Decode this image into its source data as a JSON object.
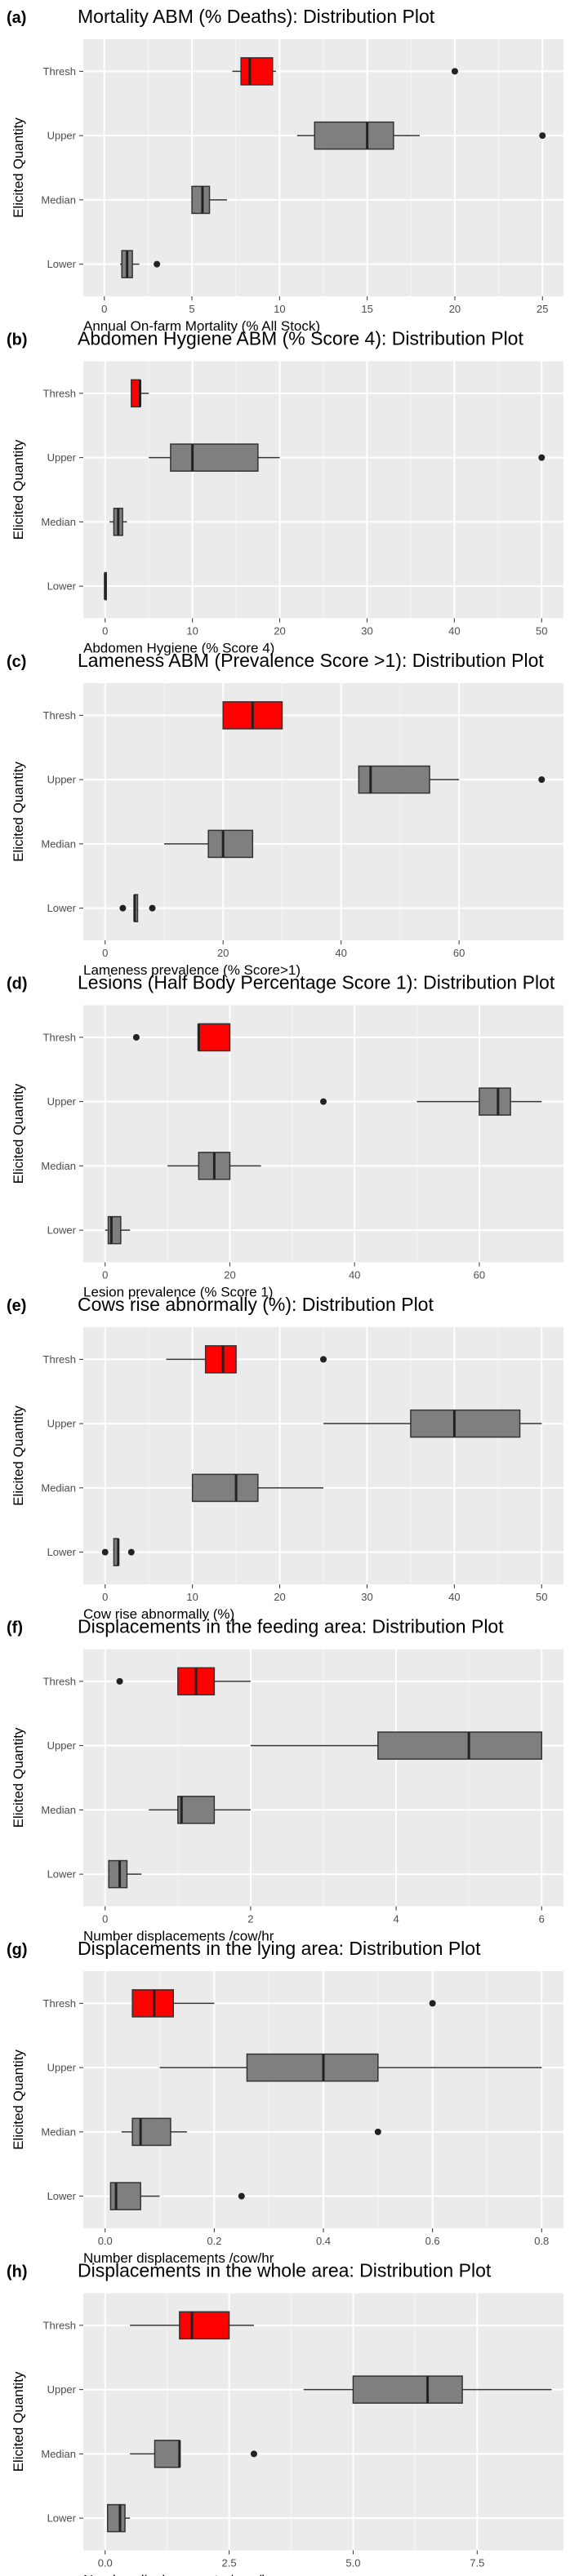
{
  "figure": {
    "y_axis_title": "Elicited Quantity"
  },
  "colors": {
    "panel_bg": "#ebebeb",
    "grid_major": "#ffffff",
    "box_default": "#7f7f7f",
    "box_highlight": "#ff0000",
    "ink": "#333333"
  },
  "chart_data": [
    {
      "type": "boxplot",
      "tag": "(a)",
      "title": "Mortality ABM (% Deaths): Distribution Plot",
      "xlabel": "Annual On-farm Mortality (% All Stock)",
      "xlim": [
        -1.2,
        26.2
      ],
      "xticks": [
        0,
        5,
        10,
        15,
        20,
        25
      ],
      "xtick_labels": [
        "0",
        "5",
        "10",
        "15",
        "20",
        "25"
      ],
      "categories": [
        "Thresh",
        "Upper",
        "Median",
        "Lower"
      ],
      "boxes": [
        {
          "name": "Thresh",
          "highlight": true,
          "whisker_low": 7.3,
          "q1": 7.8,
          "median": 8.3,
          "q3": 9.6,
          "whisker_high": 9.8,
          "outliers": [
            20
          ]
        },
        {
          "name": "Upper",
          "highlight": false,
          "whisker_low": 11,
          "q1": 12,
          "median": 15,
          "q3": 16.5,
          "whisker_high": 18,
          "outliers": [
            25
          ]
        },
        {
          "name": "Median",
          "highlight": false,
          "whisker_low": 5,
          "q1": 5,
          "median": 5.6,
          "q3": 6,
          "whisker_high": 7,
          "outliers": []
        },
        {
          "name": "Lower",
          "highlight": false,
          "whisker_low": 0.9,
          "q1": 1,
          "median": 1.3,
          "q3": 1.6,
          "whisker_high": 2,
          "outliers": [
            3
          ]
        }
      ]
    },
    {
      "type": "boxplot",
      "tag": "(b)",
      "title": "Abdomen Hygiene ABM (% Score 4): Distribution Plot",
      "xlabel": "Abdomen Hygiene (% Score 4)",
      "xlim": [
        -2.5,
        52.5
      ],
      "xticks": [
        0,
        10,
        20,
        30,
        40,
        50
      ],
      "xtick_labels": [
        "0",
        "10",
        "20",
        "30",
        "40",
        "50"
      ],
      "categories": [
        "Thresh",
        "Upper",
        "Median",
        "Lower"
      ],
      "boxes": [
        {
          "name": "Thresh",
          "highlight": true,
          "whisker_low": 3,
          "q1": 3,
          "median": 4,
          "q3": 4,
          "whisker_high": 5,
          "outliers": []
        },
        {
          "name": "Upper",
          "highlight": false,
          "whisker_low": 5,
          "q1": 7.5,
          "median": 10,
          "q3": 17.5,
          "whisker_high": 20,
          "outliers": [
            50
          ]
        },
        {
          "name": "Median",
          "highlight": false,
          "whisker_low": 0.5,
          "q1": 1,
          "median": 1.5,
          "q3": 2,
          "whisker_high": 2.5,
          "outliers": []
        },
        {
          "name": "Lower",
          "highlight": false,
          "whisker_low": 0,
          "q1": 0,
          "median": 0,
          "q3": 0,
          "whisker_high": 0,
          "outliers": []
        }
      ]
    },
    {
      "type": "boxplot",
      "tag": "(c)",
      "title": "Lameness ABM (Prevalence Score >1): Distribution Plot",
      "xlabel": "Lameness prevalence (% Score>1)",
      "xlim": [
        -3.7,
        77.7
      ],
      "xticks": [
        0,
        20,
        40,
        60
      ],
      "xtick_labels": [
        "0",
        "20",
        "40",
        "60"
      ],
      "categories": [
        "Thresh",
        "Upper",
        "Median",
        "Lower"
      ],
      "boxes": [
        {
          "name": "Thresh",
          "highlight": true,
          "whisker_low": 20,
          "q1": 20,
          "median": 25,
          "q3": 30,
          "whisker_high": 30,
          "outliers": []
        },
        {
          "name": "Upper",
          "highlight": false,
          "whisker_low": 43,
          "q1": 43,
          "median": 45,
          "q3": 55,
          "whisker_high": 60,
          "outliers": [
            74
          ]
        },
        {
          "name": "Median",
          "highlight": false,
          "whisker_low": 10,
          "q1": 17.5,
          "median": 20,
          "q3": 25,
          "whisker_high": 25,
          "outliers": []
        },
        {
          "name": "Lower",
          "highlight": false,
          "whisker_low": 5,
          "q1": 5,
          "median": 5,
          "q3": 5.5,
          "whisker_high": 5.5,
          "outliers": [
            3,
            8
          ]
        }
      ]
    },
    {
      "type": "boxplot",
      "tag": "(d)",
      "title": "Lesions (Half Body Percentage Score 1): Distribution Plot",
      "xlabel": "Lesion prevalence (% Score 1)",
      "xlim": [
        -3.5,
        73.5
      ],
      "xticks": [
        0,
        20,
        40,
        60
      ],
      "xtick_labels": [
        "0",
        "20",
        "40",
        "60"
      ],
      "categories": [
        "Thresh",
        "Upper",
        "Median",
        "Lower"
      ],
      "boxes": [
        {
          "name": "Thresh",
          "highlight": true,
          "whisker_low": 15,
          "q1": 15,
          "median": 15,
          "q3": 20,
          "whisker_high": 20,
          "outliers": [
            5
          ]
        },
        {
          "name": "Upper",
          "highlight": false,
          "whisker_low": 50,
          "q1": 60,
          "median": 63,
          "q3": 65,
          "whisker_high": 70,
          "outliers": [
            35
          ]
        },
        {
          "name": "Median",
          "highlight": false,
          "whisker_low": 10,
          "q1": 15,
          "median": 17.5,
          "q3": 20,
          "whisker_high": 25,
          "outliers": []
        },
        {
          "name": "Lower",
          "highlight": false,
          "whisker_low": 0,
          "q1": 0.5,
          "median": 1,
          "q3": 2.5,
          "whisker_high": 4,
          "outliers": []
        }
      ]
    },
    {
      "type": "boxplot",
      "tag": "(e)",
      "title": "Cows rise abnormally (%): Distribution Plot",
      "xlabel": "Cow rise abnormally (%)",
      "xlim": [
        -2.5,
        52.5
      ],
      "xticks": [
        0,
        10,
        20,
        30,
        40,
        50
      ],
      "xtick_labels": [
        "0",
        "10",
        "20",
        "30",
        "40",
        "50"
      ],
      "categories": [
        "Thresh",
        "Upper",
        "Median",
        "Lower"
      ],
      "boxes": [
        {
          "name": "Thresh",
          "highlight": true,
          "whisker_low": 7,
          "q1": 11.5,
          "median": 13.5,
          "q3": 15,
          "whisker_high": 15,
          "outliers": [
            25
          ]
        },
        {
          "name": "Upper",
          "highlight": false,
          "whisker_low": 25,
          "q1": 35,
          "median": 40,
          "q3": 47.5,
          "whisker_high": 50,
          "outliers": []
        },
        {
          "name": "Median",
          "highlight": false,
          "whisker_low": 10,
          "q1": 10,
          "median": 15,
          "q3": 17.5,
          "whisker_high": 25,
          "outliers": []
        },
        {
          "name": "Lower",
          "highlight": false,
          "whisker_low": 1,
          "q1": 1,
          "median": 1.5,
          "q3": 1.5,
          "whisker_high": 1.5,
          "outliers": [
            0,
            3
          ]
        }
      ]
    },
    {
      "type": "boxplot",
      "tag": "(f)",
      "title": "Displacements in the feeding area: Distribution Plot",
      "xlabel": "Number displacements /cow/hr",
      "xlim": [
        -0.3,
        6.3
      ],
      "xticks": [
        0,
        2,
        4,
        6
      ],
      "xtick_labels": [
        "0",
        "2",
        "4",
        "6"
      ],
      "categories": [
        "Thresh",
        "Upper",
        "Median",
        "Lower"
      ],
      "boxes": [
        {
          "name": "Thresh",
          "highlight": true,
          "whisker_low": 1,
          "q1": 1,
          "median": 1.25,
          "q3": 1.5,
          "whisker_high": 2,
          "outliers": [
            0.2
          ]
        },
        {
          "name": "Upper",
          "highlight": false,
          "whisker_low": 2,
          "q1": 3.75,
          "median": 5,
          "q3": 6,
          "whisker_high": 6,
          "outliers": []
        },
        {
          "name": "Median",
          "highlight": false,
          "whisker_low": 0.6,
          "q1": 1,
          "median": 1.05,
          "q3": 1.5,
          "whisker_high": 2,
          "outliers": []
        },
        {
          "name": "Lower",
          "highlight": false,
          "whisker_low": 0.05,
          "q1": 0.05,
          "median": 0.2,
          "q3": 0.3,
          "whisker_high": 0.5,
          "outliers": []
        }
      ]
    },
    {
      "type": "boxplot",
      "tag": "(g)",
      "title": "Displacements in the lying area: Distribution Plot",
      "xlabel": "Number displacements /cow/hr",
      "xlim": [
        -0.04,
        0.84
      ],
      "xticks": [
        0,
        0.2,
        0.4,
        0.6,
        0.8
      ],
      "xtick_labels": [
        "0.0",
        "0.2",
        "0.4",
        "0.6",
        "0.8"
      ],
      "categories": [
        "Thresh",
        "Upper",
        "Median",
        "Lower"
      ],
      "boxes": [
        {
          "name": "Thresh",
          "highlight": true,
          "whisker_low": 0.05,
          "q1": 0.05,
          "median": 0.09,
          "q3": 0.125,
          "whisker_high": 0.2,
          "outliers": [
            0.6
          ]
        },
        {
          "name": "Upper",
          "highlight": false,
          "whisker_low": 0.1,
          "q1": 0.26,
          "median": 0.4,
          "q3": 0.5,
          "whisker_high": 0.8,
          "outliers": []
        },
        {
          "name": "Median",
          "highlight": false,
          "whisker_low": 0.03,
          "q1": 0.05,
          "median": 0.065,
          "q3": 0.12,
          "whisker_high": 0.15,
          "outliers": [
            0.5
          ]
        },
        {
          "name": "Lower",
          "highlight": false,
          "whisker_low": 0.01,
          "q1": 0.01,
          "median": 0.02,
          "q3": 0.065,
          "whisker_high": 0.1,
          "outliers": [
            0.25
          ]
        }
      ]
    },
    {
      "type": "boxplot",
      "tag": "(h)",
      "title": "Displacements in the whole area: Distribution Plot",
      "xlabel": "Number displacements /cow/hr",
      "xlim": [
        -0.44,
        9.24
      ],
      "xticks": [
        0,
        2.5,
        5,
        7.5
      ],
      "xtick_labels": [
        "0.0",
        "2.5",
        "5.0",
        "7.5"
      ],
      "categories": [
        "Thresh",
        "Upper",
        "Median",
        "Lower"
      ],
      "boxes": [
        {
          "name": "Thresh",
          "highlight": true,
          "whisker_low": 0.5,
          "q1": 1.5,
          "median": 1.75,
          "q3": 2.5,
          "whisker_high": 3,
          "outliers": []
        },
        {
          "name": "Upper",
          "highlight": false,
          "whisker_low": 4,
          "q1": 5,
          "median": 6.5,
          "q3": 7.2,
          "whisker_high": 9,
          "outliers": []
        },
        {
          "name": "Median",
          "highlight": false,
          "whisker_low": 0.5,
          "q1": 1,
          "median": 1.5,
          "q3": 1.5,
          "whisker_high": 1.5,
          "outliers": [
            3
          ]
        },
        {
          "name": "Lower",
          "highlight": false,
          "whisker_low": 0.05,
          "q1": 0.05,
          "median": 0.3,
          "q3": 0.4,
          "whisker_high": 0.5,
          "outliers": []
        }
      ]
    }
  ]
}
